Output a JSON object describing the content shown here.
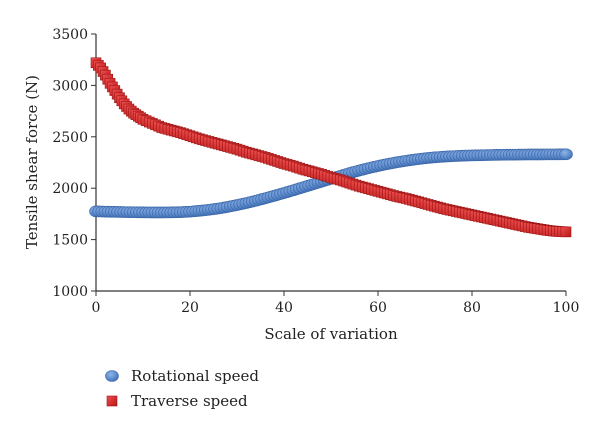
{
  "chart_data": {
    "type": "scatter",
    "xlabel": "Scale of variation",
    "ylabel": "Tensile shear force (N)",
    "xlim": [
      0,
      100
    ],
    "ylim": [
      1000,
      3500
    ],
    "xticks": [
      0,
      20,
      40,
      60,
      80,
      100
    ],
    "yticks": [
      1000,
      1500,
      2000,
      2500,
      3000,
      3500
    ],
    "grid": false,
    "legend_position": "bottom-left",
    "series": [
      {
        "name": "Rotational speed",
        "color": "#4a80c8",
        "marker": "circle",
        "x": [
          0,
          2,
          4,
          6,
          8,
          10,
          12,
          14,
          16,
          18,
          20,
          22,
          24,
          26,
          28,
          30,
          32,
          34,
          36,
          38,
          40,
          42,
          44,
          46,
          48,
          50,
          52,
          54,
          56,
          58,
          60,
          62,
          64,
          66,
          68,
          70,
          72,
          74,
          76,
          78,
          80,
          82,
          84,
          86,
          88,
          90,
          92,
          94,
          96,
          98,
          100
        ],
        "y": [
          1775,
          1772,
          1770,
          1768,
          1766,
          1765,
          1764,
          1764,
          1765,
          1767,
          1772,
          1780,
          1790,
          1802,
          1818,
          1836,
          1856,
          1878,
          1902,
          1927,
          1953,
          1980,
          2008,
          2036,
          2064,
          2092,
          2120,
          2147,
          2172,
          2195,
          2216,
          2235,
          2252,
          2267,
          2280,
          2291,
          2300,
          2307,
          2312,
          2316,
          2319,
          2321,
          2323,
          2325,
          2326,
          2327,
          2328,
          2328,
          2329,
          2329,
          2330
        ]
      },
      {
        "name": "Traverse speed",
        "color": "#d42323",
        "marker": "square",
        "x": [
          0,
          1,
          2,
          3,
          4,
          5,
          6,
          7,
          8,
          9,
          10,
          12,
          14,
          16,
          18,
          20,
          22,
          24,
          26,
          28,
          30,
          32,
          34,
          36,
          38,
          40,
          42,
          44,
          46,
          48,
          50,
          52,
          54,
          56,
          58,
          60,
          62,
          64,
          66,
          68,
          70,
          72,
          74,
          76,
          78,
          80,
          82,
          84,
          86,
          88,
          90,
          92,
          94,
          96,
          98,
          100
        ],
        "y": [
          3220,
          3170,
          3100,
          3020,
          2950,
          2880,
          2820,
          2770,
          2730,
          2700,
          2670,
          2630,
          2590,
          2565,
          2540,
          2510,
          2480,
          2455,
          2430,
          2405,
          2380,
          2350,
          2325,
          2300,
          2270,
          2240,
          2215,
          2185,
          2160,
          2135,
          2105,
          2080,
          2050,
          2020,
          1995,
          1970,
          1945,
          1920,
          1900,
          1875,
          1850,
          1825,
          1800,
          1780,
          1760,
          1740,
          1720,
          1700,
          1680,
          1660,
          1640,
          1620,
          1605,
          1590,
          1580,
          1575
        ]
      }
    ]
  }
}
